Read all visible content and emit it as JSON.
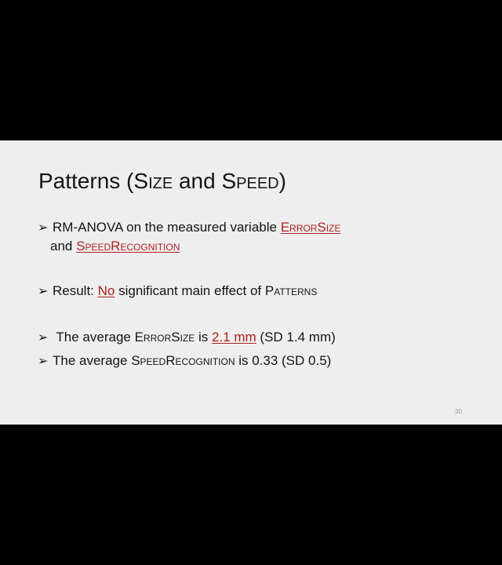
{
  "slide": {
    "title": {
      "main": "Patterns (",
      "sc_a": "Size",
      "mid": " and ",
      "sc_b": "Speed",
      "end": ")"
    },
    "bullets": [
      {
        "marker": "➢",
        "t1": "RM-ANOVA on the measured variable ",
        "link1": "ErrorSize",
        "line2_prefix": "and ",
        "link2": "SpeedRecognition"
      },
      {
        "marker": "➢",
        "t1": "Result: ",
        "link1": "No",
        "t2": " significant main effect of ",
        "sc": "Patterns"
      },
      {
        "marker": "➢",
        "t1": " The average ",
        "sc": "ErrorSize",
        "t2": " is ",
        "link1": "2.1 mm",
        "t3": " (SD 1.4 mm)"
      },
      {
        "marker": "➢",
        "t1": "The average ",
        "sc": "SpeedRecognition",
        "t2": " is 0.33 (SD 0.5)"
      }
    ],
    "page_number": "30"
  },
  "colors": {
    "background": "#000000",
    "slide_background": "#eeeeee",
    "text": "#141414",
    "link": "#b02020"
  }
}
